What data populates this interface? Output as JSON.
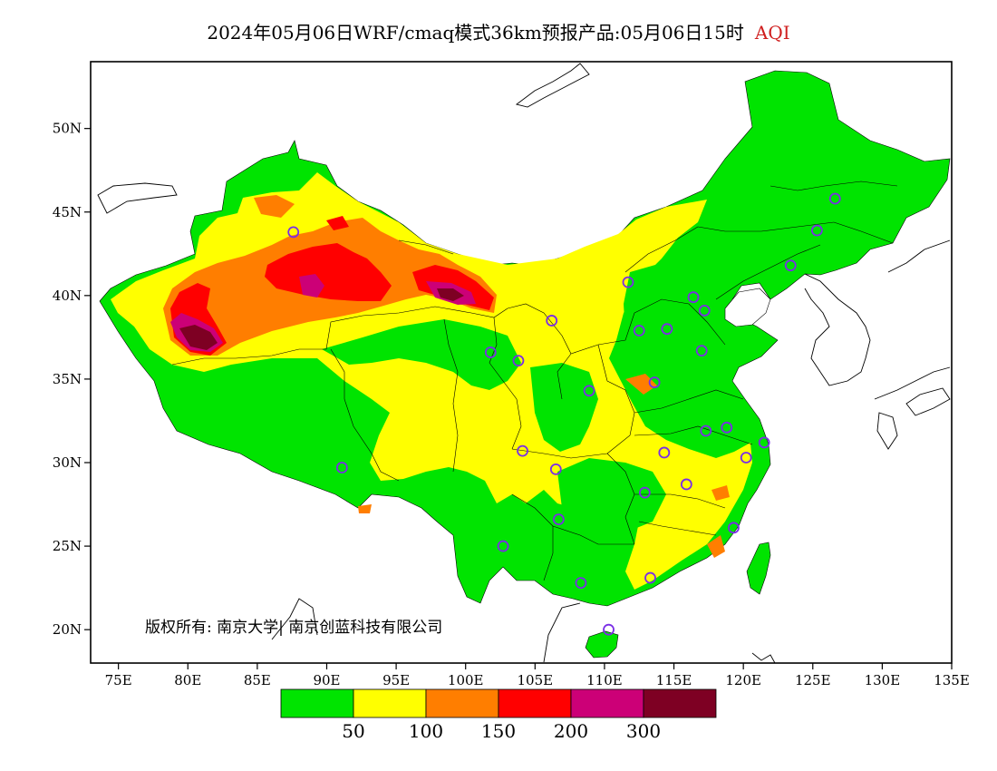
{
  "title": {
    "text": "2024年05月06日WRF/cmaq模式36km预报产品:05月06日15时",
    "variable": "AQI"
  },
  "map": {
    "lon_range": [
      73,
      135
    ],
    "lat_range": [
      18,
      54
    ],
    "x_ticks": [
      {
        "lon": 75,
        "label": "75E"
      },
      {
        "lon": 80,
        "label": "80E"
      },
      {
        "lon": 85,
        "label": "85E"
      },
      {
        "lon": 90,
        "label": "90E"
      },
      {
        "lon": 95,
        "label": "95E"
      },
      {
        "lon": 100,
        "label": "100E"
      },
      {
        "lon": 105,
        "label": "105E"
      },
      {
        "lon": 110,
        "label": "110E"
      },
      {
        "lon": 115,
        "label": "115E"
      },
      {
        "lon": 120,
        "label": "120E"
      },
      {
        "lon": 125,
        "label": "125E"
      },
      {
        "lon": 130,
        "label": "130E"
      },
      {
        "lon": 135,
        "label": "135E"
      }
    ],
    "y_ticks": [
      {
        "lat": 20,
        "label": "20N"
      },
      {
        "lat": 25,
        "label": "25N"
      },
      {
        "lat": 30,
        "label": "30N"
      },
      {
        "lat": 35,
        "label": "35N"
      },
      {
        "lat": 40,
        "label": "40N"
      },
      {
        "lat": 45,
        "label": "45N"
      },
      {
        "lat": 50,
        "label": "50N"
      }
    ],
    "copyright": "版权所有: 南京大学| 南京创蓝科技有限公司"
  },
  "legend": {
    "colors": [
      "#00e400",
      "#ffff00",
      "#ff7e00",
      "#ff0000",
      "#cc0077",
      "#7e0023"
    ],
    "labels": [
      "50",
      "100",
      "150",
      "200",
      "300"
    ]
  },
  "stations": [
    {
      "lon": 87.6,
      "lat": 43.8
    },
    {
      "lon": 91.1,
      "lat": 29.7
    },
    {
      "lon": 101.8,
      "lat": 36.6
    },
    {
      "lon": 103.8,
      "lat": 36.1
    },
    {
      "lon": 106.2,
      "lat": 38.5
    },
    {
      "lon": 111.7,
      "lat": 40.8
    },
    {
      "lon": 112.5,
      "lat": 37.9
    },
    {
      "lon": 114.5,
      "lat": 38.0
    },
    {
      "lon": 116.4,
      "lat": 39.9
    },
    {
      "lon": 117.2,
      "lat": 39.1
    },
    {
      "lon": 117.0,
      "lat": 36.7
    },
    {
      "lon": 113.6,
      "lat": 34.8
    },
    {
      "lon": 108.9,
      "lat": 34.3
    },
    {
      "lon": 104.1,
      "lat": 30.7
    },
    {
      "lon": 106.5,
      "lat": 29.6
    },
    {
      "lon": 114.3,
      "lat": 30.6
    },
    {
      "lon": 112.9,
      "lat": 28.2
    },
    {
      "lon": 115.9,
      "lat": 28.7
    },
    {
      "lon": 117.3,
      "lat": 31.9
    },
    {
      "lon": 118.8,
      "lat": 32.1
    },
    {
      "lon": 120.2,
      "lat": 30.3
    },
    {
      "lon": 121.5,
      "lat": 31.2
    },
    {
      "lon": 119.3,
      "lat": 26.1
    },
    {
      "lon": 113.3,
      "lat": 23.1
    },
    {
      "lon": 108.3,
      "lat": 22.8
    },
    {
      "lon": 102.7,
      "lat": 25.0
    },
    {
      "lon": 106.7,
      "lat": 26.6
    },
    {
      "lon": 110.3,
      "lat": 20.0
    },
    {
      "lon": 123.4,
      "lat": 41.8
    },
    {
      "lon": 125.3,
      "lat": 43.9
    },
    {
      "lon": 126.6,
      "lat": 45.8
    }
  ]
}
